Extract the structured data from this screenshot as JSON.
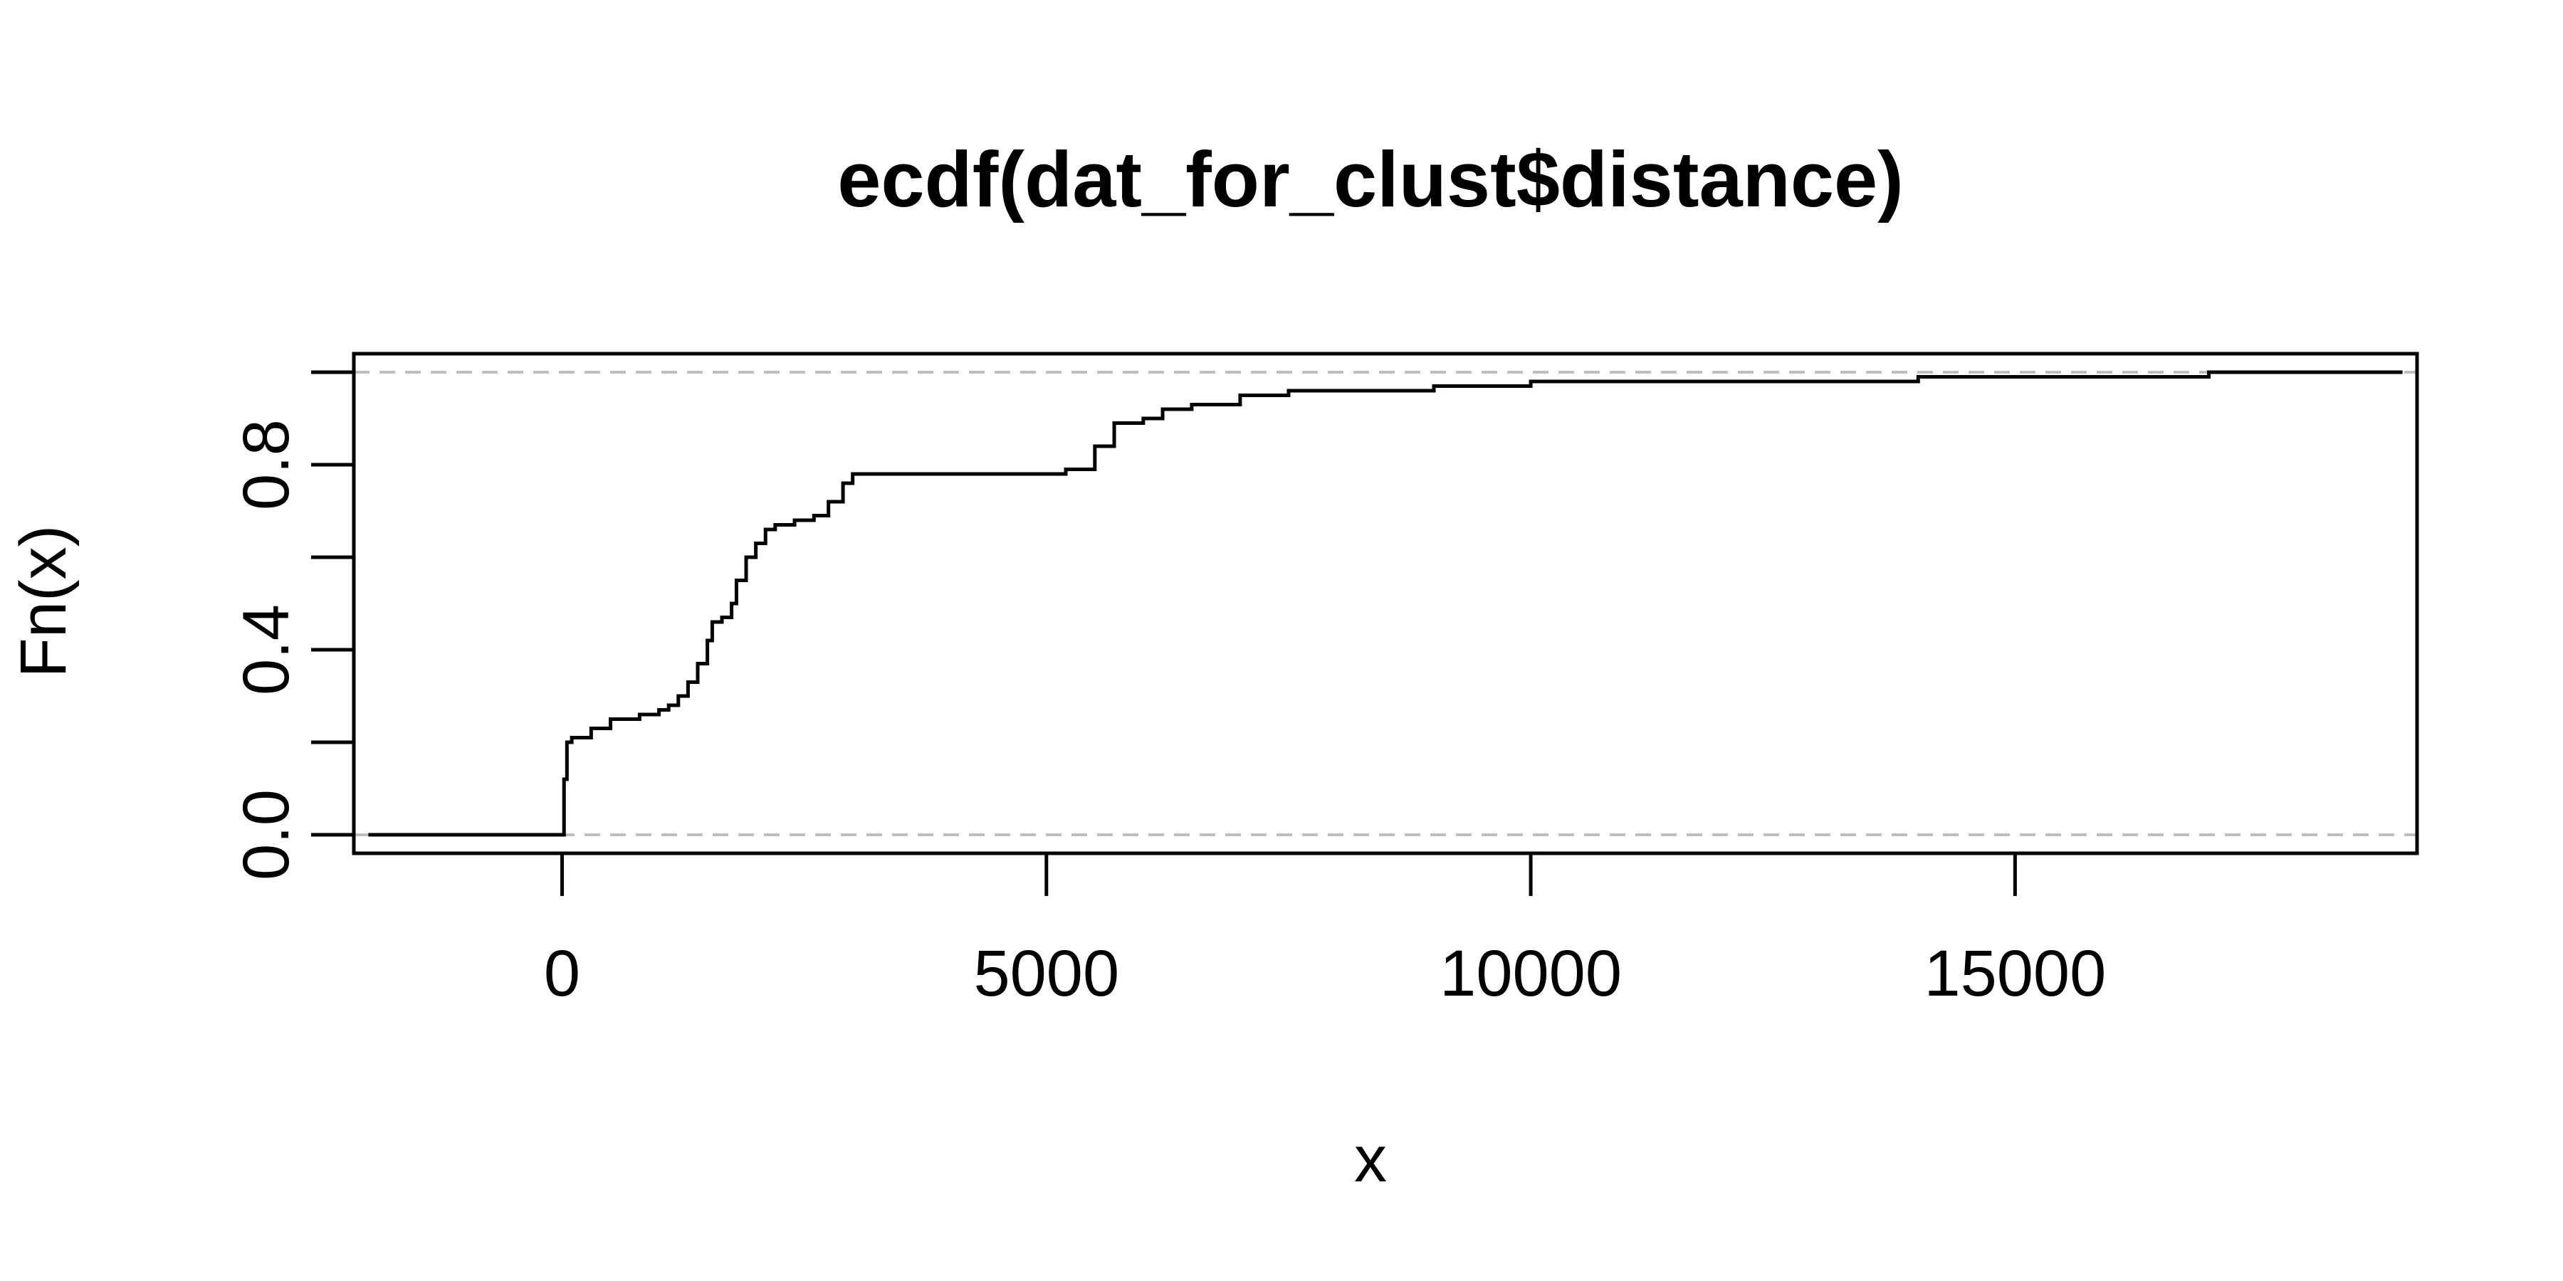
{
  "chart_data": {
    "type": "line",
    "title": "ecdf(dat_for_clust$distance)",
    "xlabel": "x",
    "ylabel": "Fn(x)",
    "xlim": [
      -2150,
      19150
    ],
    "ylim": [
      -0.04,
      1.04
    ],
    "x_ticks": [
      0,
      5000,
      10000,
      15000
    ],
    "x_tick_labels": [
      "0",
      "5000",
      "10000",
      "15000"
    ],
    "y_ticks": [
      0.0,
      0.2,
      0.4,
      0.6,
      0.8,
      1.0
    ],
    "y_tick_labels": [
      "0.0",
      "",
      "0.4",
      "",
      "0.8",
      ""
    ],
    "reference_lines": [
      0,
      1
    ],
    "grid": false,
    "legend": "none",
    "colors": {
      "line": "#000000",
      "reference": "#bebebe",
      "axis": "#000000"
    },
    "series": [
      {
        "x": [
          -2000,
          0,
          20,
          50,
          100,
          300,
          500,
          800,
          1000,
          1100,
          1200,
          1300,
          1400,
          1500,
          1550,
          1650,
          1750,
          1800,
          1900,
          2000,
          2100,
          2200,
          2400,
          2600,
          2750,
          2900,
          3000,
          4000,
          5000,
          5200,
          5500,
          5700,
          6000,
          6200,
          6500,
          7000,
          7500,
          8000,
          9000,
          10000,
          12000,
          13600,
          14000,
          16000,
          17000,
          19000
        ],
        "y": [
          0,
          0,
          0.12,
          0.2,
          0.21,
          0.23,
          0.25,
          0.26,
          0.27,
          0.28,
          0.3,
          0.33,
          0.37,
          0.42,
          0.46,
          0.47,
          0.5,
          0.55,
          0.6,
          0.63,
          0.66,
          0.67,
          0.68,
          0.69,
          0.72,
          0.76,
          0.78,
          0.78,
          0.78,
          0.79,
          0.84,
          0.89,
          0.9,
          0.92,
          0.93,
          0.95,
          0.96,
          0.96,
          0.97,
          0.98,
          0.98,
          0.98,
          0.99,
          0.99,
          1.0,
          1.0
        ]
      }
    ]
  }
}
